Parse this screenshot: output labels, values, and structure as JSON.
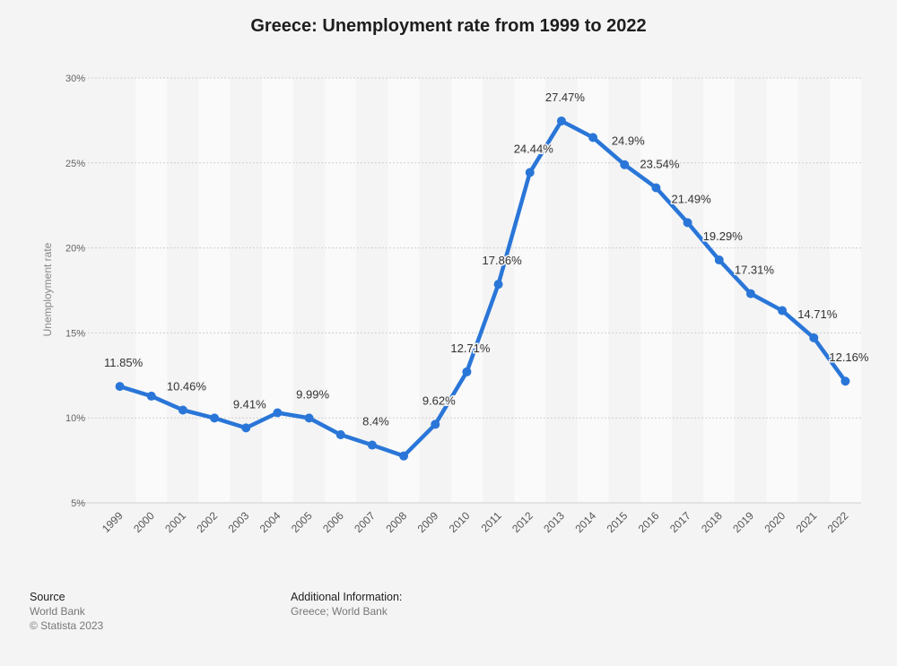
{
  "chart_data": {
    "type": "line",
    "title": "Greece: Unemployment rate from 1999 to 2022",
    "xlabel": "",
    "ylabel": "Unemployment rate",
    "categories": [
      "1999",
      "2000",
      "2001",
      "2002",
      "2003",
      "2004",
      "2005",
      "2006",
      "2007",
      "2008",
      "2009",
      "2010",
      "2011",
      "2012",
      "2013",
      "2014",
      "2015",
      "2016",
      "2017",
      "2018",
      "2019",
      "2020",
      "2021",
      "2022"
    ],
    "values": [
      11.85,
      11.28,
      10.46,
      9.99,
      9.41,
      10.3,
      9.99,
      9.01,
      8.4,
      7.76,
      9.62,
      12.71,
      17.86,
      24.44,
      27.47,
      26.5,
      24.9,
      23.54,
      21.49,
      19.29,
      17.31,
      16.31,
      14.71,
      12.16
    ],
    "data_labels": [
      "11.85%",
      "",
      "10.46%",
      "",
      "9.41%",
      "",
      "9.99%",
      "",
      "8.4%",
      "",
      "9.62%",
      "12.71%",
      "17.86%",
      "24.44%",
      "27.47%",
      "",
      "24.9%",
      "23.54%",
      "21.49%",
      "19.29%",
      "17.31%",
      "",
      "14.71%",
      "12.16%"
    ],
    "ylim": [
      5,
      30
    ],
    "y_ticks": [
      5,
      10,
      15,
      20,
      25,
      30
    ],
    "y_tick_labels": [
      "5%",
      "10%",
      "15%",
      "20%",
      "25%",
      "30%"
    ],
    "grid": true,
    "series_color": "#2a76d8"
  },
  "footer": {
    "source_heading": "Source",
    "source_name": "World Bank",
    "copyright": "© Statista 2023",
    "additional_heading": "Additional Information:",
    "additional_text": "Greece; World Bank"
  }
}
